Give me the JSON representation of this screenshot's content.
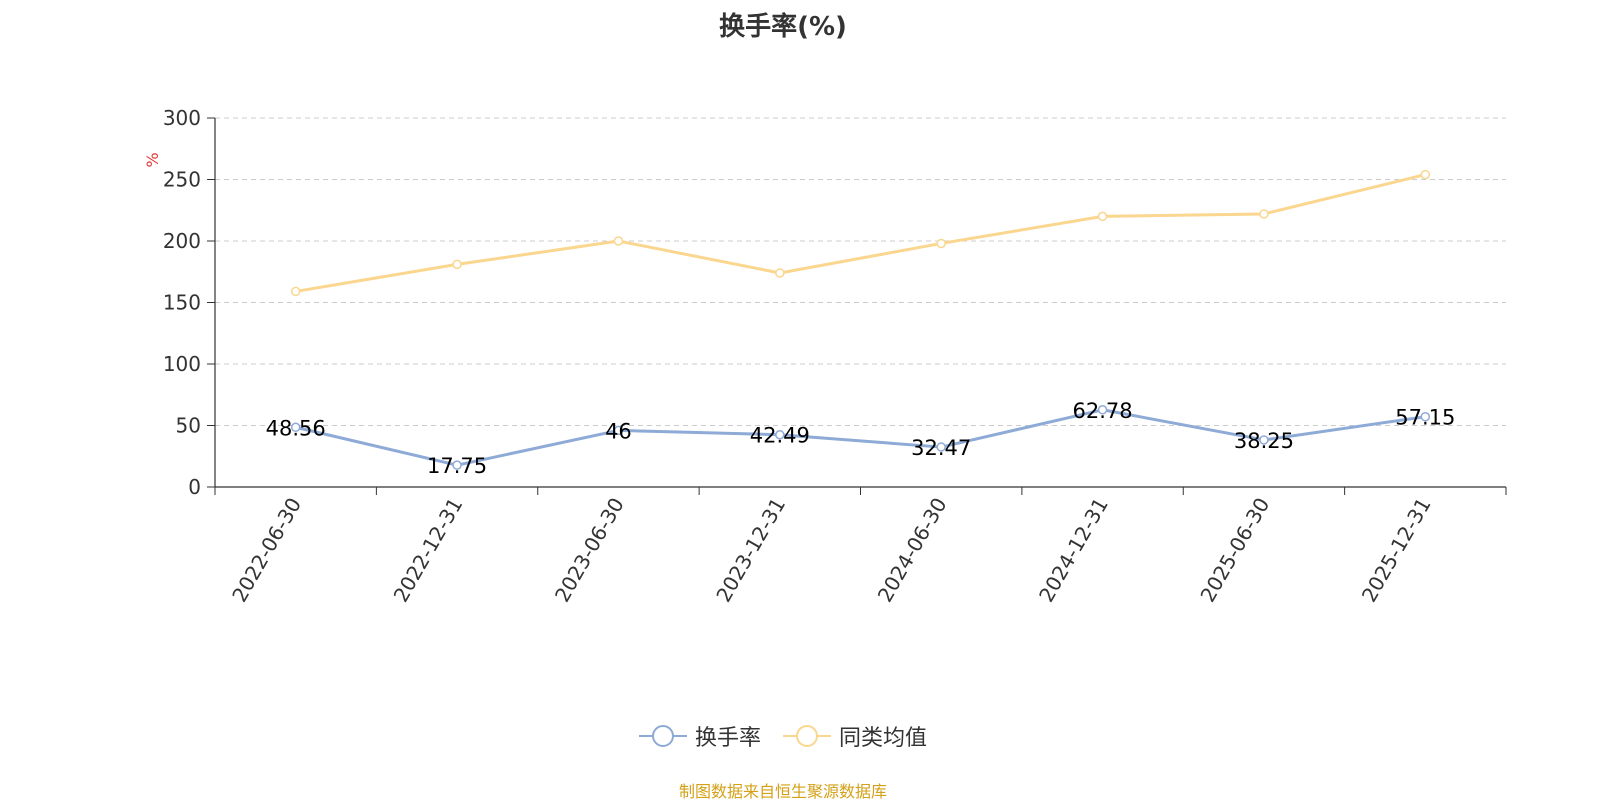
{
  "chart_data": {
    "type": "line",
    "title": "换手率(%)",
    "ylabel": "%",
    "xlabel": "",
    "ylim": [
      0,
      300
    ],
    "yticks": [
      0,
      50,
      100,
      150,
      200,
      250,
      300
    ],
    "grid": "horizontal-dashed",
    "legend_position": "bottom-center",
    "categories": [
      "2022-06-30",
      "2022-12-31",
      "2023-06-30",
      "2023-12-31",
      "2024-06-30",
      "2024-12-31",
      "2025-06-30",
      "2025-12-31"
    ],
    "series": [
      {
        "name": "换手率",
        "color": "#8eaad6",
        "values": [
          48.56,
          17.75,
          46,
          42.49,
          32.47,
          62.78,
          38.25,
          57.15
        ],
        "labels": [
          "48.56",
          "17.75",
          "46",
          "42.49",
          "32.47",
          "62.78",
          "38.25",
          "57.15"
        ]
      },
      {
        "name": "同类均值",
        "color": "#fad68f",
        "values": [
          159,
          181,
          200,
          174,
          198,
          220,
          222,
          254
        ]
      }
    ]
  },
  "source_note": "制图数据来自恒生聚源数据库",
  "colors": {
    "axis": "#333333",
    "grid": "#cccccc",
    "ylabel": "#e53935",
    "source_note": "#d4a017"
  }
}
